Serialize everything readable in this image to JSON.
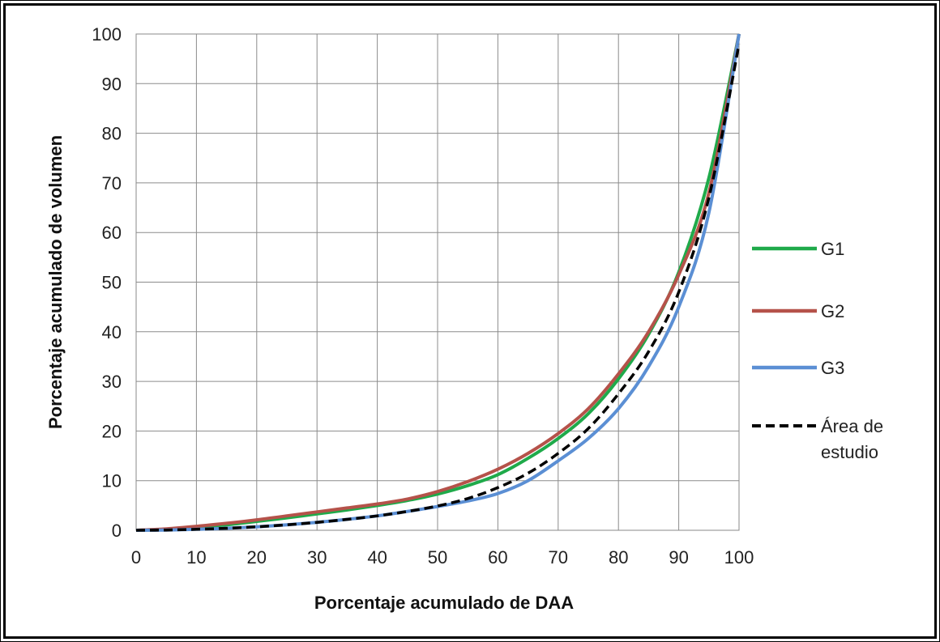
{
  "chart_data": {
    "type": "line",
    "title": "",
    "xlabel": "Porcentaje acumulado de DAA",
    "ylabel": "Porcentaje acumulado de volumen",
    "xlim": [
      0,
      100
    ],
    "ylim": [
      0,
      100
    ],
    "xticks": [
      "0",
      "10",
      "20",
      "30",
      "40",
      "50",
      "60",
      "70",
      "80",
      "90",
      "100"
    ],
    "yticks": [
      "0",
      "10",
      "20",
      "30",
      "40",
      "50",
      "60",
      "70",
      "80",
      "90",
      "100"
    ],
    "grid": true,
    "legend_position": "right",
    "series": [
      {
        "name": "G1",
        "color": "#1faa4a",
        "dash": "solid",
        "points": [
          [
            0,
            0
          ],
          [
            5,
            0.2
          ],
          [
            10,
            0.6
          ],
          [
            15,
            1.1
          ],
          [
            20,
            1.8
          ],
          [
            25,
            2.5
          ],
          [
            30,
            3.3
          ],
          [
            35,
            4.1
          ],
          [
            40,
            5
          ],
          [
            45,
            6
          ],
          [
            50,
            7.3
          ],
          [
            55,
            9
          ],
          [
            60,
            11.2
          ],
          [
            65,
            14.5
          ],
          [
            70,
            18.5
          ],
          [
            75,
            23.5
          ],
          [
            80,
            30.5
          ],
          [
            85,
            39.5
          ],
          [
            90,
            52
          ],
          [
            95,
            71
          ],
          [
            100,
            100
          ]
        ]
      },
      {
        "name": "G2",
        "color": "#b5524a",
        "dash": "solid",
        "points": [
          [
            0,
            0
          ],
          [
            5,
            0.3
          ],
          [
            10,
            0.8
          ],
          [
            15,
            1.4
          ],
          [
            20,
            2.1
          ],
          [
            25,
            2.9
          ],
          [
            30,
            3.7
          ],
          [
            35,
            4.5
          ],
          [
            40,
            5.3
          ],
          [
            45,
            6.3
          ],
          [
            50,
            7.8
          ],
          [
            55,
            9.8
          ],
          [
            60,
            12.3
          ],
          [
            65,
            15.5
          ],
          [
            70,
            19.5
          ],
          [
            75,
            24.5
          ],
          [
            80,
            31.5
          ],
          [
            85,
            40
          ],
          [
            90,
            51.5
          ],
          [
            95,
            68
          ],
          [
            100,
            100
          ]
        ]
      },
      {
        "name": "G3",
        "color": "#5b8fd4",
        "dash": "solid",
        "points": [
          [
            0,
            0
          ],
          [
            5,
            0.05
          ],
          [
            10,
            0.2
          ],
          [
            15,
            0.4
          ],
          [
            20,
            0.7
          ],
          [
            25,
            1.1
          ],
          [
            30,
            1.6
          ],
          [
            35,
            2.2
          ],
          [
            40,
            2.9
          ],
          [
            45,
            3.8
          ],
          [
            50,
            4.8
          ],
          [
            55,
            5.9
          ],
          [
            60,
            7.4
          ],
          [
            65,
            10
          ],
          [
            70,
            14
          ],
          [
            75,
            18.5
          ],
          [
            80,
            24.5
          ],
          [
            85,
            33
          ],
          [
            90,
            45
          ],
          [
            95,
            64
          ],
          [
            100,
            100
          ]
        ]
      },
      {
        "name": "Área de estudio",
        "color": "#000000",
        "dash": "dashed",
        "points": [
          [
            0,
            0
          ],
          [
            5,
            0.05
          ],
          [
            10,
            0.2
          ],
          [
            15,
            0.4
          ],
          [
            20,
            0.7
          ],
          [
            25,
            1.1
          ],
          [
            30,
            1.6
          ],
          [
            35,
            2.2
          ],
          [
            40,
            2.9
          ],
          [
            45,
            3.8
          ],
          [
            50,
            4.9
          ],
          [
            55,
            6.4
          ],
          [
            60,
            8.6
          ],
          [
            65,
            11.5
          ],
          [
            70,
            15.5
          ],
          [
            75,
            20.5
          ],
          [
            80,
            27.5
          ],
          [
            85,
            36
          ],
          [
            90,
            48
          ],
          [
            95,
            67
          ],
          [
            100,
            98
          ]
        ]
      }
    ]
  }
}
